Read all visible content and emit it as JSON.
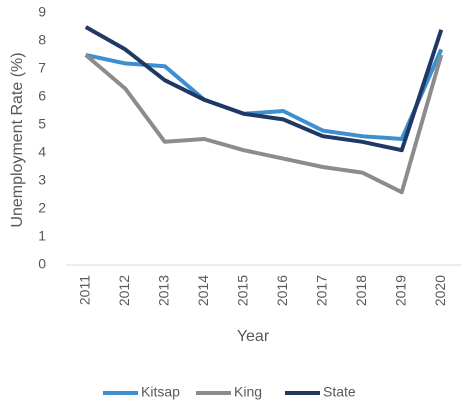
{
  "chart_data": {
    "type": "line",
    "categories": [
      "2011",
      "2012",
      "2013",
      "2014",
      "2015",
      "2016",
      "2017",
      "2018",
      "2019",
      "2020"
    ],
    "series": [
      {
        "name": "Kitsap",
        "color": "#3e8fd0",
        "values": [
          7.5,
          7.2,
          7.1,
          5.9,
          5.4,
          5.5,
          4.8,
          4.6,
          4.5,
          7.7
        ]
      },
      {
        "name": "King",
        "color": "#8c8c8c",
        "values": [
          7.5,
          6.3,
          4.4,
          4.5,
          4.1,
          3.8,
          3.5,
          3.3,
          2.6,
          7.5
        ]
      },
      {
        "name": "State",
        "color": "#203864",
        "values": [
          8.5,
          7.7,
          6.6,
          5.9,
          5.4,
          5.2,
          4.6,
          4.4,
          4.1,
          8.4
        ]
      }
    ],
    "x_label": "Year",
    "y_label": "Unemployment Rate (%)",
    "ylim": [
      0,
      9
    ],
    "yticks": [
      0,
      1,
      2,
      3,
      4,
      5,
      6,
      7,
      8,
      9
    ],
    "grid": false,
    "legend": "bottom"
  }
}
